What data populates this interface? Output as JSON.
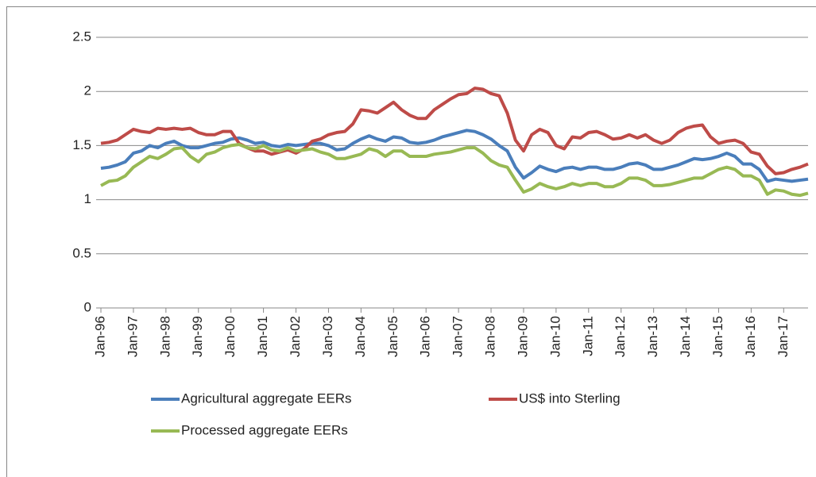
{
  "chart_data": {
    "type": "line",
    "categories": [
      "Jan-96",
      null,
      null,
      null,
      "Jan-97",
      null,
      null,
      null,
      "Jan-98",
      null,
      null,
      null,
      "Jan-99",
      null,
      null,
      null,
      "Jan-00",
      null,
      null,
      null,
      "Jan-01",
      null,
      null,
      null,
      "Jan-02",
      null,
      null,
      null,
      "Jan-03",
      null,
      null,
      null,
      "Jan-04",
      null,
      null,
      null,
      "Jan-05",
      null,
      null,
      null,
      "Jan-06",
      null,
      null,
      null,
      "Jan-07",
      null,
      null,
      null,
      "Jan-08",
      null,
      null,
      null,
      "Jan-09",
      null,
      null,
      null,
      "Jan-10",
      null,
      null,
      null,
      "Jan-11",
      null,
      null,
      null,
      "Jan-12",
      null,
      null,
      null,
      "Jan-13",
      null,
      null,
      null,
      "Jan-14",
      null,
      null,
      null,
      "Jan-15",
      null,
      null,
      null,
      "Jan-16",
      null,
      null,
      null,
      "Jan-17",
      null,
      null,
      null
    ],
    "series": [
      {
        "name": "Agricultural aggregate EERs",
        "color": "#4a7ebb",
        "values": [
          1.29,
          1.3,
          1.32,
          1.35,
          1.43,
          1.45,
          1.5,
          1.48,
          1.52,
          1.54,
          1.5,
          1.48,
          1.48,
          1.5,
          1.52,
          1.53,
          1.56,
          1.57,
          1.55,
          1.52,
          1.53,
          1.5,
          1.49,
          1.51,
          1.5,
          1.51,
          1.52,
          1.52,
          1.5,
          1.46,
          1.47,
          1.52,
          1.56,
          1.59,
          1.56,
          1.54,
          1.58,
          1.57,
          1.53,
          1.52,
          1.53,
          1.55,
          1.58,
          1.6,
          1.62,
          1.64,
          1.63,
          1.6,
          1.56,
          1.5,
          1.45,
          1.3,
          1.2,
          1.25,
          1.31,
          1.28,
          1.26,
          1.29,
          1.3,
          1.28,
          1.3,
          1.3,
          1.28,
          1.28,
          1.3,
          1.33,
          1.34,
          1.32,
          1.28,
          1.28,
          1.3,
          1.32,
          1.35,
          1.38,
          1.37,
          1.38,
          1.4,
          1.43,
          1.4,
          1.33,
          1.33,
          1.28,
          1.17,
          1.19,
          1.18,
          1.17,
          1.18,
          1.19
        ]
      },
      {
        "name": "US$ into Sterling",
        "color": "#be4b48",
        "values": [
          1.52,
          1.53,
          1.55,
          1.6,
          1.65,
          1.63,
          1.62,
          1.66,
          1.65,
          1.66,
          1.65,
          1.66,
          1.62,
          1.6,
          1.6,
          1.63,
          1.63,
          1.52,
          1.48,
          1.45,
          1.45,
          1.42,
          1.44,
          1.46,
          1.43,
          1.47,
          1.54,
          1.56,
          1.6,
          1.62,
          1.63,
          1.7,
          1.83,
          1.82,
          1.8,
          1.85,
          1.9,
          1.83,
          1.78,
          1.75,
          1.75,
          1.83,
          1.88,
          1.93,
          1.97,
          1.98,
          2.03,
          2.02,
          1.98,
          1.96,
          1.8,
          1.55,
          1.45,
          1.6,
          1.65,
          1.62,
          1.5,
          1.47,
          1.58,
          1.57,
          1.62,
          1.63,
          1.6,
          1.56,
          1.57,
          1.6,
          1.57,
          1.6,
          1.55,
          1.52,
          1.55,
          1.62,
          1.66,
          1.68,
          1.69,
          1.58,
          1.52,
          1.54,
          1.55,
          1.52,
          1.44,
          1.42,
          1.31,
          1.24,
          1.25,
          1.28,
          1.3,
          1.33
        ]
      },
      {
        "name": "Processed aggregate EERs",
        "color": "#98b954",
        "values": [
          1.13,
          1.17,
          1.18,
          1.22,
          1.3,
          1.35,
          1.4,
          1.38,
          1.42,
          1.47,
          1.48,
          1.4,
          1.35,
          1.42,
          1.44,
          1.48,
          1.5,
          1.51,
          1.48,
          1.47,
          1.5,
          1.46,
          1.45,
          1.48,
          1.45,
          1.46,
          1.47,
          1.44,
          1.42,
          1.38,
          1.38,
          1.4,
          1.42,
          1.47,
          1.45,
          1.4,
          1.45,
          1.45,
          1.4,
          1.4,
          1.4,
          1.42,
          1.43,
          1.44,
          1.46,
          1.48,
          1.48,
          1.43,
          1.36,
          1.32,
          1.3,
          1.18,
          1.07,
          1.1,
          1.15,
          1.12,
          1.1,
          1.12,
          1.15,
          1.13,
          1.15,
          1.15,
          1.12,
          1.12,
          1.15,
          1.2,
          1.2,
          1.18,
          1.13,
          1.13,
          1.14,
          1.16,
          1.18,
          1.2,
          1.2,
          1.24,
          1.28,
          1.3,
          1.28,
          1.22,
          1.22,
          1.18,
          1.05,
          1.09,
          1.08,
          1.05,
          1.04,
          1.06
        ]
      }
    ],
    "ylim": [
      0,
      2.5
    ],
    "yticks": [
      0,
      0.5,
      1,
      1.5,
      2,
      2.5
    ],
    "grid": true,
    "legend": "bottom"
  }
}
